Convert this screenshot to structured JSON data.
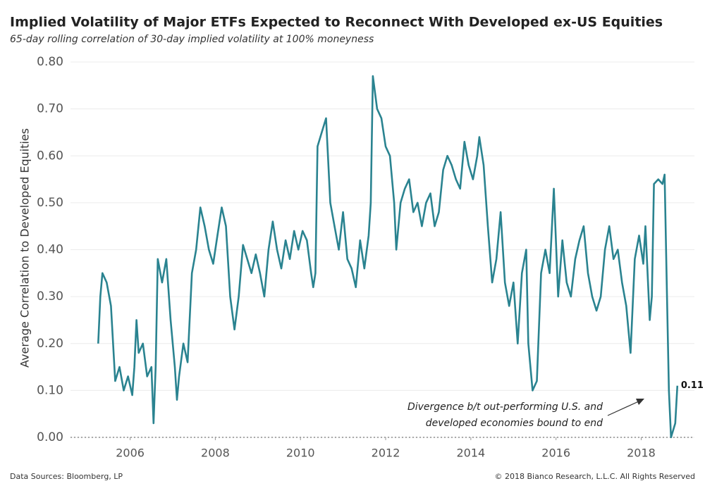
{
  "chart_data": {
    "type": "line",
    "title": "Implied Volatility of Major ETFs Expected to Reconnect With Developed ex-US Equities",
    "subtitle": "65-day rolling correlation of 30-day implied volatility at 100% moneyness",
    "y_label": "Average Correlation to Developed Equities",
    "source": "Data Sources: Bloomberg, LP",
    "copyright": "© 2018 Bianco Research, L.L.C. All Rights Reserved",
    "annotation": [
      "Divergence b/t out-performing U.S. and",
      "developed economies bound to end"
    ],
    "color": "#2a8390",
    "xlim": [
      2004.6,
      2019.25
    ],
    "xticks": [
      2006,
      2008,
      2010,
      2012,
      2014,
      2016,
      2018
    ],
    "ylim": [
      0,
      0.8
    ],
    "yticks": [
      {
        "value": 0,
        "label": "0.00"
      },
      {
        "value": 0.1,
        "label": "0.10"
      },
      {
        "value": 0.2,
        "label": "0.20"
      },
      {
        "value": 0.3,
        "label": "0.30"
      },
      {
        "value": 0.4,
        "label": "0.40"
      },
      {
        "value": 0.5,
        "label": "0.50"
      },
      {
        "value": 0.6,
        "label": "0.60"
      },
      {
        "value": 0.7,
        "label": "0.70"
      },
      {
        "value": 0.8,
        "label": "0.80"
      }
    ],
    "grid": true,
    "x": [
      2005.25,
      2005.3,
      2005.35,
      2005.45,
      2005.55,
      2005.65,
      2005.75,
      2005.85,
      2005.95,
      2006.05,
      2006.1,
      2006.15,
      2006.2,
      2006.3,
      2006.4,
      2006.5,
      2006.55,
      2006.6,
      2006.65,
      2006.75,
      2006.85,
      2006.95,
      2007.05,
      2007.1,
      2007.15,
      2007.25,
      2007.35,
      2007.45,
      2007.55,
      2007.65,
      2007.75,
      2007.85,
      2007.95,
      2008.05,
      2008.15,
      2008.25,
      2008.35,
      2008.45,
      2008.55,
      2008.65,
      2008.75,
      2008.85,
      2008.95,
      2009.05,
      2009.15,
      2009.25,
      2009.35,
      2009.45,
      2009.55,
      2009.65,
      2009.75,
      2009.85,
      2009.95,
      2010.05,
      2010.15,
      2010.25,
      2010.3,
      2010.35,
      2010.4,
      2010.5,
      2010.6,
      2010.7,
      2010.8,
      2010.9,
      2011.0,
      2011.1,
      2011.2,
      2011.3,
      2011.4,
      2011.5,
      2011.6,
      2011.65,
      2011.7,
      2011.8,
      2011.9,
      2012.0,
      2012.1,
      2012.15,
      2012.2,
      2012.25,
      2012.35,
      2012.45,
      2012.55,
      2012.65,
      2012.75,
      2012.85,
      2012.95,
      2013.05,
      2013.15,
      2013.25,
      2013.35,
      2013.45,
      2013.55,
      2013.65,
      2013.75,
      2013.85,
      2013.95,
      2014.05,
      2014.15,
      2014.2,
      2014.3,
      2014.4,
      2014.5,
      2014.6,
      2014.7,
      2014.8,
      2014.9,
      2015.0,
      2015.1,
      2015.2,
      2015.3,
      2015.35,
      2015.45,
      2015.55,
      2015.65,
      2015.75,
      2015.85,
      2015.95,
      2016.05,
      2016.15,
      2016.25,
      2016.35,
      2016.45,
      2016.55,
      2016.65,
      2016.75,
      2016.85,
      2016.95,
      2017.05,
      2017.15,
      2017.25,
      2017.35,
      2017.45,
      2017.55,
      2017.65,
      2017.75,
      2017.85,
      2017.95,
      2018.05,
      2018.1,
      2018.2,
      2018.25,
      2018.3,
      2018.4,
      2018.5,
      2018.55,
      2018.6,
      2018.65,
      2018.7,
      2018.8,
      2018.85
    ],
    "values": [
      0.2,
      0.3,
      0.35,
      0.33,
      0.28,
      0.12,
      0.15,
      0.1,
      0.13,
      0.09,
      0.15,
      0.25,
      0.18,
      0.2,
      0.13,
      0.15,
      0.03,
      0.15,
      0.38,
      0.33,
      0.38,
      0.25,
      0.15,
      0.08,
      0.13,
      0.2,
      0.16,
      0.35,
      0.4,
      0.49,
      0.45,
      0.4,
      0.37,
      0.43,
      0.49,
      0.45,
      0.3,
      0.23,
      0.3,
      0.41,
      0.38,
      0.35,
      0.39,
      0.35,
      0.3,
      0.4,
      0.46,
      0.4,
      0.36,
      0.42,
      0.38,
      0.44,
      0.4,
      0.44,
      0.42,
      0.35,
      0.32,
      0.35,
      0.62,
      0.65,
      0.68,
      0.5,
      0.45,
      0.4,
      0.48,
      0.38,
      0.36,
      0.32,
      0.42,
      0.36,
      0.43,
      0.5,
      0.77,
      0.7,
      0.68,
      0.62,
      0.6,
      0.55,
      0.5,
      0.4,
      0.5,
      0.53,
      0.55,
      0.48,
      0.5,
      0.45,
      0.5,
      0.52,
      0.45,
      0.48,
      0.57,
      0.6,
      0.58,
      0.55,
      0.53,
      0.63,
      0.58,
      0.55,
      0.6,
      0.64,
      0.58,
      0.45,
      0.33,
      0.38,
      0.48,
      0.33,
      0.28,
      0.33,
      0.2,
      0.35,
      0.4,
      0.2,
      0.1,
      0.12,
      0.35,
      0.4,
      0.35,
      0.53,
      0.3,
      0.42,
      0.33,
      0.3,
      0.38,
      0.42,
      0.45,
      0.35,
      0.3,
      0.27,
      0.3,
      0.4,
      0.45,
      0.38,
      0.4,
      0.33,
      0.28,
      0.18,
      0.38,
      0.43,
      0.37,
      0.45,
      0.25,
      0.3,
      0.54,
      0.55,
      0.54,
      0.56,
      0.33,
      0.1,
      0.0,
      0.03,
      0.11
    ]
  }
}
